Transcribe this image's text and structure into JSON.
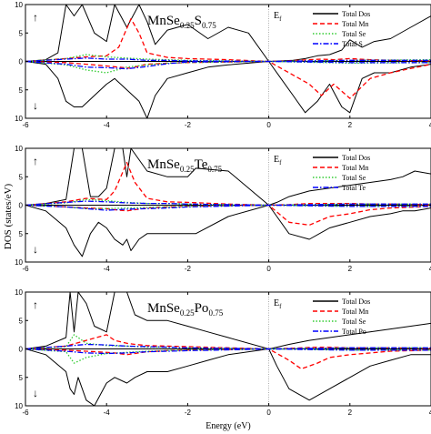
{
  "figure": {
    "ylabel": "DOS (states/eV)",
    "xlabel": "Energy (eV)"
  },
  "chart_data": [
    {
      "type": "line",
      "title_base": "MnSe",
      "title_sub1": "0.25",
      "title_el": "S",
      "title_sub2": "0.75",
      "fermi_label": "E",
      "fermi_sub": "f",
      "spin_up_symbol": "↑",
      "spin_down_symbol": "↓",
      "xlim": [
        -6,
        4
      ],
      "ylim": [
        -10,
        10
      ],
      "xticks": [
        "-6",
        "-4",
        "-2",
        "0",
        "2",
        "4"
      ],
      "yticks": [
        "10",
        "5",
        "0",
        "5",
        "10"
      ],
      "fermi_level": 0,
      "legend": [
        "Total Dos",
        "Total Mn",
        "Total Se",
        "Total S"
      ],
      "series": [
        {
          "name": "Total Dos",
          "color": "#000000",
          "dash": "solid",
          "x": [
            -6,
            -5.5,
            -5.2,
            -5.0,
            -4.8,
            -4.6,
            -4.3,
            -4.0,
            -3.8,
            -3.5,
            -3.2,
            -3.0,
            -2.8,
            -2.5,
            -2.0,
            -1.5,
            -1.0,
            -0.5,
            0.0,
            0.3,
            0.6,
            0.9,
            1.2,
            1.5,
            1.8,
            2.0,
            2.3,
            2.6,
            3.0,
            3.5,
            4.0
          ],
          "up": [
            0,
            0.3,
            1.5,
            10,
            8,
            10,
            5,
            3.5,
            10,
            6,
            10,
            7,
            3,
            5.5,
            6.5,
            4,
            6,
            5,
            0,
            0.1,
            0.2,
            0.5,
            1,
            1.2,
            2,
            3.8,
            2.5,
            3.5,
            4,
            6,
            8
          ],
          "dn": [
            0,
            -0.5,
            -3,
            -7,
            -8,
            -8,
            -6,
            -4,
            -3,
            -5,
            -7,
            -10,
            -6,
            -3,
            -2,
            -1,
            -0.6,
            -0.3,
            0,
            -3,
            -6,
            -9,
            -7,
            -4,
            -8,
            -9,
            -3,
            -2,
            -2,
            -1,
            -0.5
          ]
        },
        {
          "name": "Total Mn",
          "color": "#ff0000",
          "dash": "dashed",
          "x": [
            -6,
            -5.0,
            -4.5,
            -4.0,
            -3.7,
            -3.4,
            -3.2,
            -3.0,
            -2.5,
            -2.0,
            -1.0,
            0.0,
            0.5,
            1.0,
            1.3,
            1.6,
            2.0,
            2.5,
            3.0,
            4.0
          ],
          "up": [
            0,
            0.5,
            0.8,
            1.0,
            2.5,
            7.5,
            5,
            1.5,
            0.7,
            0.5,
            0.3,
            0,
            0.1,
            0.3,
            0.4,
            0.3,
            0.5,
            0.3,
            0.2,
            0.1
          ],
          "dn": [
            0,
            -0.2,
            -0.5,
            -0.8,
            -1.0,
            -1.2,
            -0.8,
            -0.5,
            -0.3,
            -0.2,
            -0.1,
            0,
            -2,
            -4,
            -6,
            -4,
            -6.5,
            -3,
            -2,
            -0.5
          ]
        },
        {
          "name": "Total Se",
          "color": "#33cc33",
          "dash": "dotted",
          "x": [
            -6,
            -5.0,
            -4.5,
            -4.0,
            -3.5,
            -3.0,
            -2.5,
            -2.0,
            0.0,
            2.0,
            4.0
          ],
          "up": [
            0,
            0.5,
            1.2,
            0.8,
            0.6,
            0.4,
            0.3,
            0.2,
            0,
            0.2,
            0.3
          ],
          "dn": [
            0,
            -0.6,
            -1.5,
            -2.0,
            -1.0,
            -0.6,
            -0.3,
            -0.2,
            0,
            -0.3,
            -0.2
          ]
        },
        {
          "name": "Total S",
          "color": "#0000ff",
          "dash": "dashdot",
          "x": [
            -6,
            -5.0,
            -4.5,
            -4.0,
            -3.5,
            -3.0,
            -2.5,
            -2.0,
            0.0,
            2.0,
            4.0
          ],
          "up": [
            0,
            0.4,
            0.6,
            0.4,
            0.4,
            0.2,
            0.2,
            0.1,
            0,
            0.2,
            0.2
          ],
          "dn": [
            0,
            -0.5,
            -1.0,
            -1.1,
            -1.3,
            -0.9,
            -0.4,
            -0.1,
            0,
            -0.2,
            -0.2
          ]
        }
      ]
    },
    {
      "type": "line",
      "title_base": "MnSe",
      "title_sub1": "0.25",
      "title_el": "Te",
      "title_sub2": "0.75",
      "fermi_label": "E",
      "fermi_sub": "f",
      "spin_up_symbol": "↑",
      "spin_down_symbol": "↓",
      "xlim": [
        -6,
        4
      ],
      "ylim": [
        -10,
        10
      ],
      "xticks": [
        "-6",
        "-4",
        "-2",
        "0",
        "2",
        "4"
      ],
      "yticks": [
        "10",
        "5",
        "0",
        "5",
        "10"
      ],
      "fermi_level": 0,
      "legend": [
        "Total Dos",
        "Total Mn",
        "Total Se",
        "Total Te"
      ],
      "series": [
        {
          "name": "Total Dos",
          "color": "#000000",
          "dash": "solid",
          "x": [
            -6,
            -5.5,
            -5.0,
            -4.8,
            -4.6,
            -4.4,
            -4.2,
            -4.0,
            -3.8,
            -3.6,
            -3.5,
            -3.4,
            -3.2,
            -3.0,
            -2.5,
            -2.0,
            -1.8,
            -1.0,
            0.0,
            0.2,
            0.5,
            1.0,
            1.5,
            2.0,
            2.5,
            3.0,
            3.3,
            3.6,
            4.0
          ],
          "up": [
            0,
            0.3,
            1,
            10,
            10,
            1.5,
            1.5,
            3,
            10,
            10,
            5,
            10,
            8,
            6,
            5,
            5,
            6.5,
            6,
            0,
            0.5,
            1.5,
            2.5,
            3,
            3.5,
            4,
            4.5,
            5,
            6,
            5.5
          ],
          "dn": [
            0,
            -1,
            -4,
            -7,
            -9,
            -5,
            -3,
            -4,
            -6,
            -7,
            -6,
            -8,
            -6,
            -5,
            -5,
            -5,
            -5,
            -2,
            0,
            -2,
            -5,
            -6,
            -4,
            -3,
            -2,
            -1.5,
            -1,
            -1,
            -0.5
          ]
        },
        {
          "name": "Total Mn",
          "color": "#ff0000",
          "dash": "dashed",
          "x": [
            -6,
            -5.0,
            -4.5,
            -4.0,
            -3.8,
            -3.5,
            -3.3,
            -3.0,
            -2.5,
            -2.0,
            -1.0,
            0.0,
            0.5,
            1.0,
            1.5,
            2.0,
            2.5,
            3.0,
            4.0
          ],
          "up": [
            0,
            0.6,
            1.2,
            1.0,
            2.5,
            7.5,
            4,
            1.2,
            0.6,
            0.5,
            0.2,
            0,
            0.1,
            0.3,
            0.3,
            0.3,
            0.2,
            0.2,
            0.1
          ],
          "dn": [
            0,
            -0.3,
            -0.5,
            -0.6,
            -0.8,
            -1.0,
            -0.8,
            -0.5,
            -0.3,
            -0.2,
            -0.1,
            0,
            -3,
            -3.5,
            -2,
            -1.5,
            -0.8,
            -0.5,
            -0.2
          ]
        },
        {
          "name": "Total Se",
          "color": "#33cc33",
          "dash": "dotted",
          "x": [
            -6,
            -5.0,
            -4.5,
            -4.0,
            -3.5,
            -3.0,
            -2.5,
            -2.0,
            0.0,
            2.0,
            4.0
          ],
          "up": [
            0,
            0.4,
            1.0,
            0.8,
            0.5,
            0.3,
            0.3,
            0.2,
            0,
            0.2,
            0.2
          ],
          "dn": [
            0,
            -0.3,
            -0.6,
            -0.6,
            -0.5,
            -0.4,
            -0.3,
            -0.2,
            0,
            -0.2,
            -0.2
          ]
        },
        {
          "name": "Total Te",
          "color": "#0000ff",
          "dash": "dashdot",
          "x": [
            -6,
            -5.0,
            -4.5,
            -4.0,
            -3.5,
            -3.0,
            -2.5,
            -2.0,
            0.0,
            2.0,
            4.0
          ],
          "up": [
            0,
            0.5,
            0.7,
            0.6,
            0.4,
            0.3,
            0.3,
            0.2,
            0,
            0.2,
            0.2
          ],
          "dn": [
            0,
            -0.3,
            -0.6,
            -0.9,
            -0.7,
            -0.6,
            -0.5,
            -0.3,
            0,
            -0.2,
            -0.2
          ]
        }
      ]
    },
    {
      "type": "line",
      "title_base": "MnSe",
      "title_sub1": "0.25",
      "title_el": "Po",
      "title_sub2": "0.75",
      "fermi_label": "E",
      "fermi_sub": "f",
      "spin_up_symbol": "↑",
      "spin_down_symbol": "↓",
      "xlim": [
        -6,
        4
      ],
      "ylim": [
        -10,
        10
      ],
      "xticks": [
        "-6",
        "-4",
        "-2",
        "0",
        "2",
        "4"
      ],
      "yticks": [
        "10",
        "5",
        "0",
        "5",
        "10"
      ],
      "fermi_level": 0,
      "legend": [
        "Total Dos",
        "Total Mn",
        "Total Se",
        "Total Po"
      ],
      "series": [
        {
          "name": "Total Dos",
          "color": "#000000",
          "dash": "solid",
          "x": [
            -6,
            -5.5,
            -5.0,
            -4.9,
            -4.8,
            -4.7,
            -4.5,
            -4.3,
            -4.0,
            -3.8,
            -3.5,
            -3.3,
            -3.0,
            -2.5,
            -2.0,
            -1.5,
            -1.0,
            0.0,
            0.2,
            0.5,
            1.0,
            1.5,
            2.0,
            2.5,
            3.0,
            3.5,
            4.0
          ],
          "up": [
            0,
            0.5,
            2,
            10,
            3,
            10,
            8,
            4,
            3,
            10,
            10,
            6,
            5,
            5,
            4,
            3,
            2,
            0,
            0.3,
            0.8,
            1.5,
            2,
            2.5,
            3,
            3.5,
            4,
            4.5
          ],
          "dn": [
            0,
            -1,
            -4,
            -7,
            -8,
            -5,
            -9,
            -10,
            -6,
            -5,
            -6,
            -5,
            -4,
            -4,
            -3,
            -2,
            -1,
            0,
            -3,
            -7,
            -9,
            -7,
            -5,
            -3,
            -2,
            -1,
            -1
          ]
        },
        {
          "name": "Total Mn",
          "color": "#ff0000",
          "dash": "dashed",
          "x": [
            -6,
            -5.0,
            -4.5,
            -4.0,
            -3.8,
            -3.5,
            -3.3,
            -3.0,
            -2.5,
            -2.0,
            -1.0,
            0.0,
            0.5,
            0.8,
            1.2,
            1.5,
            2.0,
            3.0,
            4.0
          ],
          "up": [
            0,
            0.5,
            1.5,
            2.5,
            1.5,
            1.0,
            0.8,
            0.6,
            0.5,
            0.4,
            0.2,
            0,
            0.1,
            0.2,
            0.3,
            0.3,
            0.2,
            0.2,
            0.1
          ],
          "dn": [
            0,
            -0.2,
            -0.4,
            -0.6,
            -0.7,
            -1.0,
            -0.8,
            -0.5,
            -0.3,
            -0.2,
            -0.1,
            0,
            -2,
            -3.5,
            -2.5,
            -1.5,
            -1,
            -0.4,
            -0.2
          ]
        },
        {
          "name": "Total Se",
          "color": "#33cc33",
          "dash": "dotted",
          "x": [
            -6,
            -5.0,
            -4.8,
            -4.5,
            -4.0,
            -3.5,
            -3.0,
            -2.5,
            -2.0,
            0.0,
            2.0,
            4.0
          ],
          "up": [
            0,
            0.4,
            2.5,
            1.0,
            0.6,
            0.5,
            0.3,
            0.3,
            0.2,
            0,
            0.2,
            0.2
          ],
          "dn": [
            0,
            -0.5,
            -2.5,
            -1.5,
            -0.8,
            -0.6,
            -0.4,
            -0.3,
            -0.2,
            0,
            -0.2,
            -0.2
          ]
        },
        {
          "name": "Total Po",
          "color": "#0000ff",
          "dash": "dashdot",
          "x": [
            -6,
            -5.0,
            -4.5,
            -4.0,
            -3.5,
            -3.0,
            -2.5,
            -2.0,
            0.0,
            2.0,
            4.0
          ],
          "up": [
            0,
            0.5,
            0.8,
            0.7,
            0.5,
            0.4,
            0.3,
            0.2,
            0,
            0.2,
            0.2
          ],
          "dn": [
            0,
            -0.4,
            -0.7,
            -0.8,
            -0.7,
            -0.5,
            -0.4,
            -0.3,
            0,
            -0.2,
            -0.2
          ]
        }
      ]
    }
  ]
}
